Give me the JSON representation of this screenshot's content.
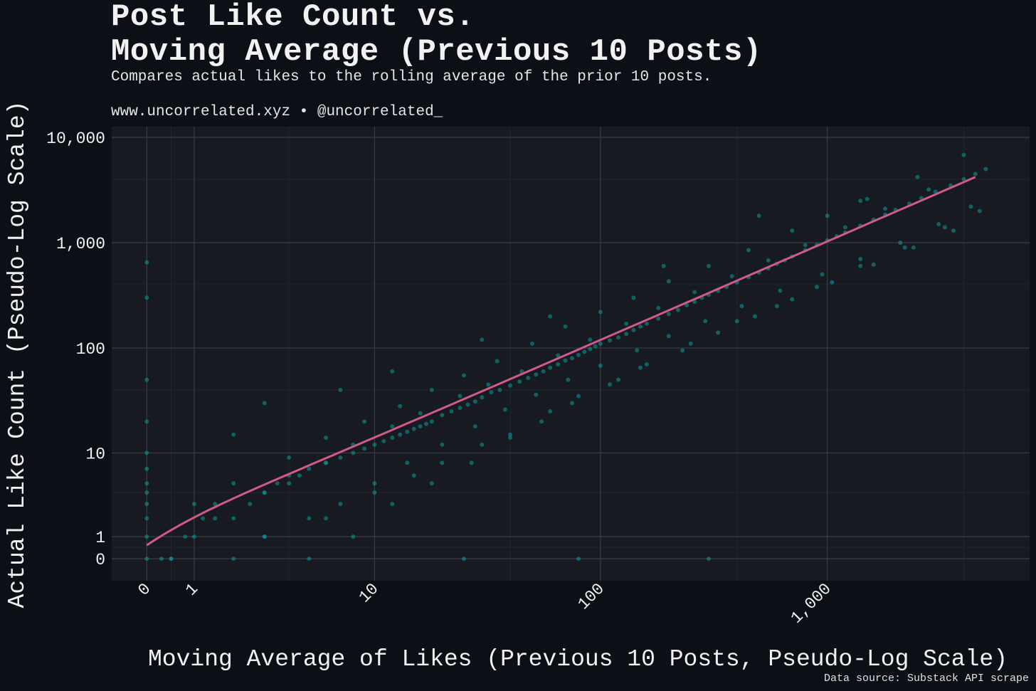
{
  "header": {
    "title": "Post Like Count vs.\nMoving Average (Previous 10 Posts)",
    "subtitle": "Compares actual likes to the rolling average of the prior 10 posts.",
    "credit": "www.uncorrelated.xyz • @uncorrelated_"
  },
  "caption": "Data source: Substack API scrape",
  "colors": {
    "background": "#0c0f16",
    "panel": "#171a21",
    "grid_major": "#3a3d44",
    "grid_minor": "#22252c",
    "points": "#0e9a9a",
    "trend_line": "#d05a88",
    "text": "#f2f2f2"
  },
  "chart_data": {
    "type": "scatter",
    "xlabel": "Moving Average of Likes (Previous 10 Posts, Pseudo-Log Scale)",
    "ylabel": "Actual Like Count (Pseudo-Log Scale)",
    "x_scale": "pseudo-log",
    "y_scale": "pseudo-log",
    "xlim": [
      -0.5,
      7000
    ],
    "ylim": [
      -0.5,
      10000
    ],
    "x_ticks": [
      0,
      1,
      10,
      100,
      1000
    ],
    "x_tick_labels": [
      "0",
      "1",
      "10",
      "100",
      "1,000"
    ],
    "y_ticks": [
      0,
      1,
      10,
      100,
      1000,
      10000
    ],
    "y_tick_labels": [
      "0",
      "1",
      "10",
      "100",
      "1,000",
      "10,000"
    ],
    "grid": true,
    "trend_line": {
      "x": [
        0,
        4500
      ],
      "y": [
        0.6,
        4200
      ]
    },
    "series": [
      {
        "x": [
          0,
          0,
          0,
          0,
          0,
          0,
          0,
          0,
          0,
          0,
          0,
          0,
          0.3,
          0.5,
          0.8,
          1,
          1.2,
          1.5,
          2,
          2.5,
          3,
          3.5,
          4,
          4.5,
          5,
          6,
          7,
          8,
          9,
          10,
          11,
          12,
          13,
          14,
          15,
          16,
          17,
          18,
          20,
          22,
          24,
          26,
          28,
          30,
          33,
          36,
          40,
          44,
          48,
          52,
          56,
          60,
          65,
          70,
          75,
          80,
          85,
          90,
          95,
          100,
          110,
          120,
          130,
          140,
          150,
          160,
          180,
          200,
          220,
          240,
          260,
          280,
          300,
          330,
          360,
          400,
          450,
          500,
          550,
          600,
          650,
          700,
          800,
          900,
          1000,
          1100,
          1200,
          1400,
          1600,
          1800,
          2000,
          2300,
          2600,
          3000,
          3500,
          4000,
          4500,
          5000,
          2,
          3,
          5,
          7,
          10,
          15,
          20,
          30,
          40,
          60,
          80,
          120,
          160,
          250,
          400,
          600,
          900,
          1400,
          2200,
          3300,
          4700,
          1,
          2,
          4,
          6,
          9,
          13,
          18,
          25,
          35,
          50,
          70,
          100,
          140,
          200,
          300,
          450,
          700,
          1000,
          1500,
          2500,
          4000,
          0.5,
          1.5,
          3,
          4,
          6,
          8,
          12,
          16,
          24,
          32,
          45,
          65,
          90,
          130,
          180,
          260,
          380,
          550,
          800,
          1200,
          1800,
          2800,
          5,
          8,
          12,
          18,
          27,
          40,
          55,
          75,
          110,
          150,
          230,
          330,
          480,
          700,
          1050,
          1600,
          2400,
          3600,
          3,
          6,
          10,
          14,
          20,
          28,
          38,
          52,
          72,
          100,
          145,
          200,
          290,
          420,
          620,
          950,
          1400,
          2100,
          3100,
          4300,
          25,
          80,
          300,
          3,
          12,
          30,
          60,
          190,
          500,
          1400,
          2,
          7
        ],
        "y": [
          0,
          1,
          2,
          3,
          4,
          5,
          7,
          10,
          20,
          50,
          300,
          650,
          0,
          0,
          1,
          1,
          2,
          3,
          2,
          3,
          4,
          5,
          5,
          6,
          7,
          8,
          9,
          10,
          11,
          12,
          13,
          14,
          15,
          16,
          17,
          18,
          19,
          20,
          23,
          25,
          27,
          29,
          31,
          34,
          38,
          40,
          44,
          48,
          52,
          56,
          60,
          65,
          70,
          76,
          80,
          86,
          92,
          98,
          104,
          110,
          118,
          126,
          136,
          148,
          160,
          170,
          190,
          210,
          230,
          255,
          275,
          300,
          320,
          350,
          380,
          420,
          470,
          520,
          570,
          630,
          680,
          740,
          850,
          950,
          1050,
          1150,
          1250,
          1450,
          1650,
          1850,
          2050,
          2350,
          2650,
          3050,
          3500,
          4000,
          4500,
          5000,
          0,
          1,
          2,
          3,
          4,
          6,
          8,
          12,
          15,
          25,
          35,
          50,
          70,
          110,
          180,
          250,
          380,
          600,
          900,
          1400,
          2000,
          3,
          5,
          9,
          14,
          20,
          28,
          40,
          55,
          75,
          110,
          160,
          220,
          300,
          430,
          600,
          850,
          1300,
          1800,
          2600,
          4200,
          6800,
          0,
          2,
          4,
          6,
          8,
          12,
          18,
          24,
          35,
          45,
          60,
          85,
          120,
          170,
          240,
          340,
          480,
          680,
          950,
          1400,
          2100,
          3200,
          0,
          1,
          3,
          5,
          8,
          14,
          20,
          30,
          45,
          65,
          95,
          140,
          200,
          290,
          420,
          620,
          900,
          1300,
          1,
          2,
          5,
          8,
          12,
          18,
          26,
          36,
          50,
          68,
          95,
          130,
          180,
          250,
          350,
          500,
          700,
          1000,
          1500,
          2200,
          0,
          0,
          0,
          30,
          60,
          120,
          200,
          600,
          1800,
          2500,
          15,
          40
        ]
      }
    ]
  },
  "plot_area": {
    "x_ticks": [],
    "y_ticks": []
  }
}
